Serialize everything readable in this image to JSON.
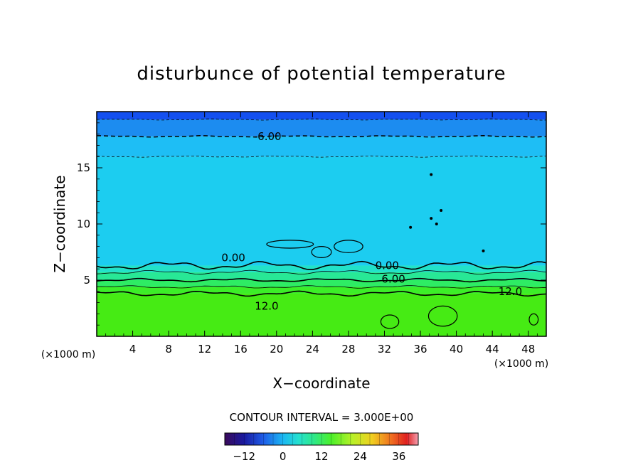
{
  "chart_data": {
    "type": "heatmap",
    "title": "disturbunce of potential temperature",
    "xlabel": "X−coordinate",
    "ylabel": "Z−coordinate",
    "x_unit": "(×1000 m)",
    "y_unit": "(×1000 m)",
    "xlim": [
      0,
      50
    ],
    "ylim": [
      0,
      20
    ],
    "x_ticks": [
      4,
      8,
      12,
      16,
      20,
      24,
      28,
      32,
      36,
      40,
      44,
      48
    ],
    "y_ticks": [
      5,
      10,
      15
    ],
    "grid": false,
    "contour_interval_text": "CONTOUR INTERVAL = 3.000E+00",
    "contour_labels": [
      {
        "text": "-6.00",
        "x": 19,
        "y": 17.8
      },
      {
        "text": "0.00",
        "x": 15.2,
        "y": 7.0
      },
      {
        "text": "0.00",
        "x": 32.3,
        "y": 6.3
      },
      {
        "text": "6.00",
        "x": 33.0,
        "y": 5.1
      },
      {
        "text": "12.0",
        "x": 18.9,
        "y": 2.7
      },
      {
        "text": "12.0",
        "x": 46.0,
        "y": 4.0
      }
    ],
    "layers": [
      {
        "z_min": 0,
        "z_max": 3.8,
        "value": 15
      },
      {
        "z_min": 3.8,
        "z_max": 4.4,
        "value": 12
      },
      {
        "z_min": 4.4,
        "z_max": 5.0,
        "value": 9
      },
      {
        "z_min": 5.0,
        "z_max": 5.7,
        "value": 6
      },
      {
        "z_min": 5.7,
        "z_max": 6.3,
        "value": 3
      },
      {
        "z_min": 6.3,
        "z_max": 16.0,
        "value": -1
      },
      {
        "z_min": 16.0,
        "z_max": 17.8,
        "value": -3
      },
      {
        "z_min": 17.8,
        "z_max": 19.3,
        "value": -6
      },
      {
        "z_min": 19.3,
        "z_max": 20,
        "value": -9
      }
    ],
    "colorbar": {
      "min": -18,
      "max": 42,
      "tick_labels": [
        "−12",
        "0",
        "12",
        "24",
        "36"
      ],
      "tick_values": [
        -12,
        0,
        12,
        24,
        36
      ]
    }
  }
}
